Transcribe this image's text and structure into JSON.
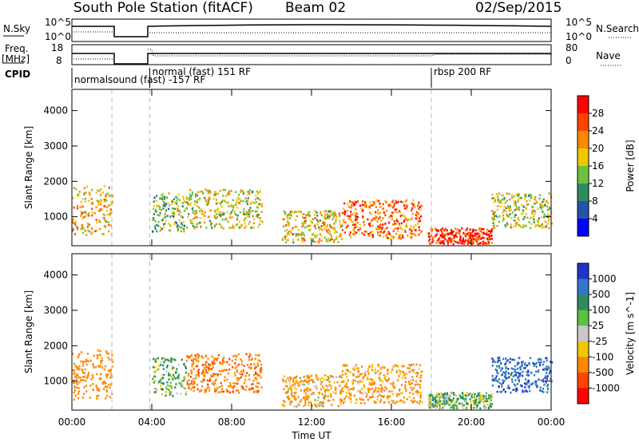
{
  "header": {
    "station": "South Pole Station (fitACF)",
    "beam": "Beam 02",
    "date": "02/Sep/2015"
  },
  "top_panels": {
    "nsky_label": "N.Sky",
    "nsky_ticks": [
      "10^5",
      "10^0"
    ],
    "nsearch_label": "N.Search",
    "nsearch_ticks": [
      "10^5",
      "10^0"
    ],
    "freq_label_1": "Freq.",
    "freq_label_2": "[MHz]",
    "freq_ticks": [
      "18",
      "8"
    ],
    "nave_label": "Nave",
    "nave_ticks": [
      "80",
      "0"
    ],
    "cpid_label": "CPID",
    "cpid_segments": [
      {
        "label": "normalsound (fast) -157 RF",
        "start_h": 0.0,
        "end_h": 3.9
      },
      {
        "label": "normal (fast) 151 RF",
        "start_h": 3.9,
        "end_h": 18.0
      },
      {
        "label": "rbsp 200 RF",
        "start_h": 18.0,
        "end_h": 24.0
      }
    ]
  },
  "power_colorbar": {
    "title": "Power [dB]",
    "ticks": [
      "28",
      "24",
      "20",
      "16",
      "12",
      "8",
      "4"
    ],
    "colors": [
      "#ff0000",
      "#ff4400",
      "#ff8800",
      "#f0c800",
      "#6fc040",
      "#2e8c60",
      "#2255aa",
      "#0000ff"
    ]
  },
  "velocity_colorbar": {
    "title": "Velocity [m s^-1]",
    "ticks": [
      "1000",
      "500",
      "100",
      "25",
      "-25",
      "-100",
      "-500",
      "-1000"
    ],
    "colors": [
      "#2233cc",
      "#3377cc",
      "#2e8c60",
      "#5cc040",
      "#c8c8c8",
      "#f0c800",
      "#ff8800",
      "#ff4400",
      "#ff0000"
    ]
  },
  "chart_data": {
    "type": "heatmap",
    "xlabel": "Time UT",
    "ylabel": "Slant Range [km]",
    "x_ticks": [
      "00:00",
      "04:00",
      "08:00",
      "12:00",
      "16:00",
      "20:00",
      "00:00"
    ],
    "y_ticks": [
      "1000",
      "2000",
      "3000",
      "4000"
    ],
    "xlim": [
      0,
      24
    ],
    "ylim": [
      180,
      4600
    ],
    "data_gaps_hours": [
      [
        2.0,
        3.8
      ]
    ],
    "scatter_regions": [
      {
        "t0": 0.0,
        "t1": 2.0,
        "r0": 500,
        "r1": 1900,
        "power": 20,
        "velocity": -300
      },
      {
        "t0": 4.0,
        "t1": 5.7,
        "r0": 600,
        "r1": 1700,
        "power": 14,
        "velocity": 100
      },
      {
        "t0": 5.7,
        "t1": 9.5,
        "r0": 700,
        "r1": 1800,
        "power": 17,
        "velocity": -400
      },
      {
        "t0": 10.5,
        "t1": 13.5,
        "r0": 300,
        "r1": 1200,
        "power": 18,
        "velocity": -150
      },
      {
        "t0": 13.5,
        "t1": 17.5,
        "r0": 400,
        "r1": 1500,
        "power": 24,
        "velocity": -200
      },
      {
        "t0": 17.8,
        "t1": 21.0,
        "r0": 250,
        "r1": 700,
        "power": 28,
        "velocity": 100
      },
      {
        "t0": 21.0,
        "t1": 24.0,
        "r0": 700,
        "r1": 1700,
        "power": 16,
        "velocity": 800
      }
    ]
  }
}
